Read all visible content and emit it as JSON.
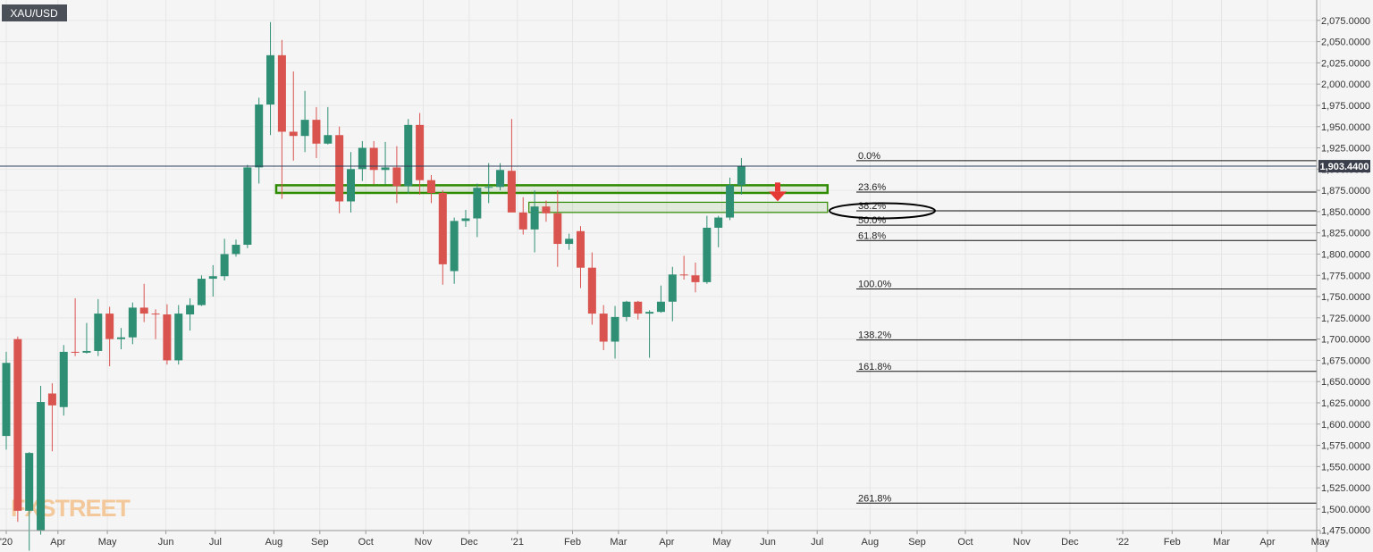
{
  "symbol_label": "XAU/USD",
  "watermark": "FXSTREET",
  "last_price_label": "1,903.4400",
  "colors": {
    "up": "#2f8f74",
    "down": "#d9534f",
    "zone": "#2e8b00",
    "arrow": "#e53935",
    "background": "#f5f5f5",
    "badge_bg": "#3a3f4b"
  },
  "chart_data": {
    "type": "candlestick",
    "title": "XAU/USD",
    "timeframe": "weekly",
    "ylim": [
      1465,
      2085
    ],
    "y_ticks": [
      1475,
      1500,
      1525,
      1550,
      1575,
      1600,
      1625,
      1650,
      1675,
      1700,
      1725,
      1750,
      1775,
      1800,
      1825,
      1850,
      1875,
      1900,
      1925,
      1950,
      1975,
      2000,
      2025,
      2050,
      2075
    ],
    "y_tick_labels": [
      "1,475.0000",
      "1,500.0000",
      "1,525.0000",
      "1,550.0000",
      "1,575.0000",
      "1,600.0000",
      "1,625.0000",
      "1,650.0000",
      "1,675.0000",
      "1,700.0000",
      "1,725.0000",
      "1,750.0000",
      "1,775.0000",
      "1,800.0000",
      "1,825.0000",
      "1,850.0000",
      "1,875.0000",
      "1,900.0000",
      "1,925.0000",
      "1,950.0000",
      "1,975.0000",
      "2,000.0000",
      "2,025.0000",
      "2,050.0000",
      "2,075.0000"
    ],
    "x_ticks": [
      {
        "label": "'20",
        "week": 0
      },
      {
        "label": "Apr",
        "week": 4.5
      },
      {
        "label": "May",
        "week": 8.8
      },
      {
        "label": "Jun",
        "week": 13.9
      },
      {
        "label": "Jul",
        "week": 18.2
      },
      {
        "label": "Aug",
        "week": 23.3
      },
      {
        "label": "Sep",
        "week": 27.3
      },
      {
        "label": "Oct",
        "week": 31.3
      },
      {
        "label": "Nov",
        "week": 36.3
      },
      {
        "label": "Dec",
        "week": 40.3
      },
      {
        "label": "'21",
        "week": 44.5
      },
      {
        "label": "Feb",
        "week": 49.3
      },
      {
        "label": "Mar",
        "week": 53.3
      },
      {
        "label": "Apr",
        "week": 57.5
      },
      {
        "label": "May",
        "week": 62.3
      },
      {
        "label": "Jun",
        "week": 66.3
      },
      {
        "label": "Jul",
        "week": 70.6
      },
      {
        "label": "Aug",
        "week": 75.2
      },
      {
        "label": "Sep",
        "week": 79.3
      },
      {
        "label": "Oct",
        "week": 83.5
      },
      {
        "label": "Nov",
        "week": 88.4
      },
      {
        "label": "Dec",
        "week": 92.6
      },
      {
        "label": "'22",
        "week": 97.2
      },
      {
        "label": "Feb",
        "week": 101.5
      },
      {
        "label": "Mar",
        "week": 105.8
      },
      {
        "label": "Apr",
        "week": 109.8
      },
      {
        "label": "May",
        "week": 114.4
      }
    ],
    "candles": [
      {
        "o": 1586,
        "h": 1685,
        "l": 1570,
        "c": 1672
      },
      {
        "o": 1700,
        "h": 1703,
        "l": 1485,
        "c": 1498
      },
      {
        "o": 1498,
        "h": 1567,
        "l": 1451,
        "c": 1566
      },
      {
        "o": 1475,
        "h": 1645,
        "l": 1470,
        "c": 1626
      },
      {
        "o": 1636,
        "h": 1648,
        "l": 1568,
        "c": 1622
      },
      {
        "o": 1620,
        "h": 1693,
        "l": 1610,
        "c": 1685
      },
      {
        "o": 1685,
        "h": 1748,
        "l": 1680,
        "c": 1684
      },
      {
        "o": 1684,
        "h": 1719,
        "l": 1683,
        "c": 1686
      },
      {
        "o": 1686,
        "h": 1747,
        "l": 1680,
        "c": 1730
      },
      {
        "o": 1730,
        "h": 1738,
        "l": 1668,
        "c": 1700
      },
      {
        "o": 1700,
        "h": 1713,
        "l": 1688,
        "c": 1702
      },
      {
        "o": 1702,
        "h": 1743,
        "l": 1694,
        "c": 1737
      },
      {
        "o": 1737,
        "h": 1765,
        "l": 1720,
        "c": 1730
      },
      {
        "o": 1730,
        "h": 1735,
        "l": 1700,
        "c": 1729
      },
      {
        "o": 1729,
        "h": 1741,
        "l": 1670,
        "c": 1675
      },
      {
        "o": 1675,
        "h": 1740,
        "l": 1670,
        "c": 1730
      },
      {
        "o": 1729,
        "h": 1748,
        "l": 1710,
        "c": 1740
      },
      {
        "o": 1740,
        "h": 1775,
        "l": 1739,
        "c": 1771
      },
      {
        "o": 1771,
        "h": 1787,
        "l": 1750,
        "c": 1774
      },
      {
        "o": 1774,
        "h": 1818,
        "l": 1769,
        "c": 1800
      },
      {
        "o": 1800,
        "h": 1817,
        "l": 1797,
        "c": 1811
      },
      {
        "o": 1811,
        "h": 1905,
        "l": 1807,
        "c": 1902
      },
      {
        "o": 1902,
        "h": 1984,
        "l": 1883,
        "c": 1976
      },
      {
        "o": 1976,
        "h": 2073,
        "l": 1940,
        "c": 2034
      },
      {
        "o": 2034,
        "h": 2052,
        "l": 1865,
        "c": 1944
      },
      {
        "o": 1944,
        "h": 2015,
        "l": 1910,
        "c": 1939
      },
      {
        "o": 1939,
        "h": 1992,
        "l": 1920,
        "c": 1958
      },
      {
        "o": 1958,
        "h": 1973,
        "l": 1913,
        "c": 1930
      },
      {
        "o": 1930,
        "h": 1973,
        "l": 1929,
        "c": 1940
      },
      {
        "o": 1940,
        "h": 1950,
        "l": 1848,
        "c": 1862
      },
      {
        "o": 1862,
        "h": 1920,
        "l": 1849,
        "c": 1900
      },
      {
        "o": 1900,
        "h": 1933,
        "l": 1886,
        "c": 1925
      },
      {
        "o": 1925,
        "h": 1933,
        "l": 1882,
        "c": 1899
      },
      {
        "o": 1899,
        "h": 1932,
        "l": 1882,
        "c": 1902
      },
      {
        "o": 1902,
        "h": 1927,
        "l": 1860,
        "c": 1880
      },
      {
        "o": 1880,
        "h": 1959,
        "l": 1871,
        "c": 1952
      },
      {
        "o": 1952,
        "h": 1966,
        "l": 1870,
        "c": 1887
      },
      {
        "o": 1887,
        "h": 1893,
        "l": 1860,
        "c": 1872
      },
      {
        "o": 1872,
        "h": 1875,
        "l": 1764,
        "c": 1788
      },
      {
        "o": 1780,
        "h": 1843,
        "l": 1765,
        "c": 1839
      },
      {
        "o": 1839,
        "h": 1852,
        "l": 1832,
        "c": 1842
      },
      {
        "o": 1842,
        "h": 1883,
        "l": 1820,
        "c": 1878
      },
      {
        "o": 1878,
        "h": 1907,
        "l": 1860,
        "c": 1879
      },
      {
        "o": 1879,
        "h": 1907,
        "l": 1875,
        "c": 1899
      },
      {
        "o": 1898,
        "h": 1959,
        "l": 1850,
        "c": 1849
      },
      {
        "o": 1849,
        "h": 1867,
        "l": 1823,
        "c": 1829
      },
      {
        "o": 1829,
        "h": 1875,
        "l": 1802,
        "c": 1856
      },
      {
        "o": 1856,
        "h": 1863,
        "l": 1838,
        "c": 1848
      },
      {
        "o": 1848,
        "h": 1875,
        "l": 1785,
        "c": 1812
      },
      {
        "o": 1812,
        "h": 1824,
        "l": 1805,
        "c": 1818
      },
      {
        "o": 1827,
        "h": 1833,
        "l": 1760,
        "c": 1784
      },
      {
        "o": 1784,
        "h": 1802,
        "l": 1717,
        "c": 1730
      },
      {
        "o": 1730,
        "h": 1740,
        "l": 1687,
        "c": 1697
      },
      {
        "o": 1697,
        "h": 1739,
        "l": 1677,
        "c": 1726
      },
      {
        "o": 1726,
        "h": 1745,
        "l": 1721,
        "c": 1744
      },
      {
        "o": 1744,
        "h": 1745,
        "l": 1723,
        "c": 1730
      },
      {
        "o": 1730,
        "h": 1734,
        "l": 1678,
        "c": 1732
      },
      {
        "o": 1732,
        "h": 1763,
        "l": 1731,
        "c": 1744
      },
      {
        "o": 1744,
        "h": 1785,
        "l": 1721,
        "c": 1776
      },
      {
        "o": 1776,
        "h": 1798,
        "l": 1770,
        "c": 1775
      },
      {
        "o": 1775,
        "h": 1790,
        "l": 1755,
        "c": 1767
      },
      {
        "o": 1767,
        "h": 1845,
        "l": 1765,
        "c": 1831
      },
      {
        "o": 1831,
        "h": 1845,
        "l": 1808,
        "c": 1843
      },
      {
        "o": 1843,
        "h": 1890,
        "l": 1840,
        "c": 1881
      },
      {
        "o": 1881,
        "h": 1913,
        "l": 1870,
        "c": 1903
      }
    ],
    "fib_levels": [
      {
        "label": "0.0%",
        "value": 1910
      },
      {
        "label": "23.6%",
        "value": 1873
      },
      {
        "label": "38.2%",
        "value": 1851
      },
      {
        "label": "50.0%",
        "value": 1834
      },
      {
        "label": "61.8%",
        "value": 1816
      },
      {
        "label": "100.0%",
        "value": 1759
      },
      {
        "label": "138.2%",
        "value": 1699
      },
      {
        "label": "161.8%",
        "value": 1662
      },
      {
        "label": "261.8%",
        "value": 1507
      }
    ],
    "last_price": 1903.44,
    "zones": [
      {
        "y_top": 1881,
        "y_bottom": 1872,
        "week_start": 23.5,
        "week_end": 71.5
      },
      {
        "y_top": 1861,
        "y_bottom": 1849,
        "week_start": 45.5,
        "week_end": 71.5
      }
    ]
  }
}
